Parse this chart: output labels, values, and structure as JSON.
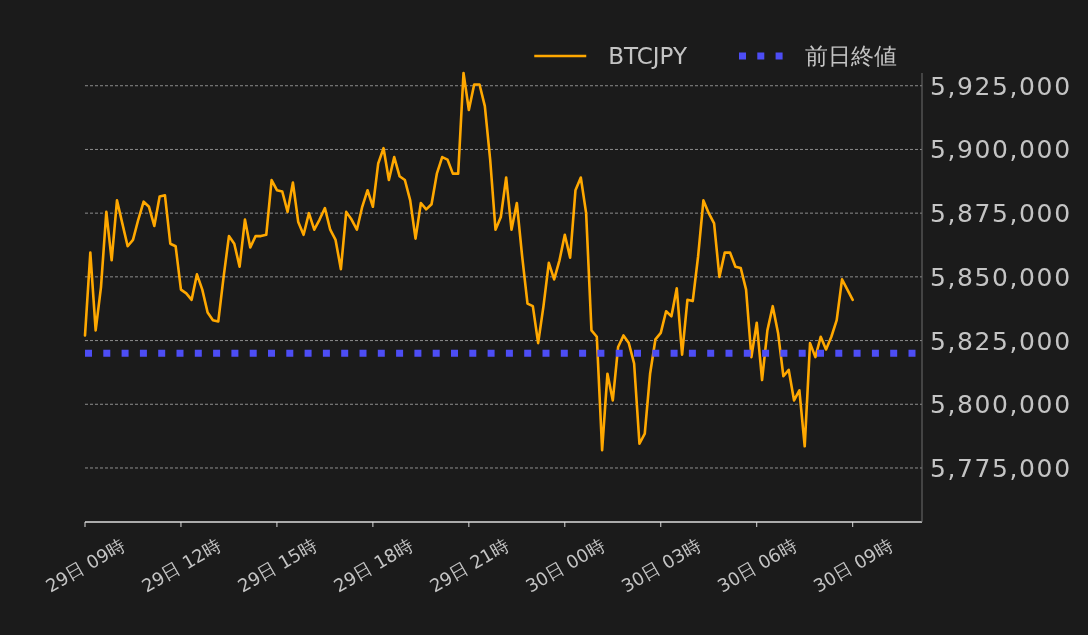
{
  "chart_data": {
    "type": "line",
    "categories": [
      "29日 09時",
      null,
      null,
      null,
      null,
      null,
      null,
      null,
      null,
      null,
      null,
      null,
      null,
      null,
      null,
      null,
      null,
      null,
      "29日 12時",
      null,
      null,
      null,
      null,
      null,
      null,
      null,
      null,
      null,
      null,
      null,
      null,
      null,
      null,
      null,
      null,
      null,
      "29日 15時",
      null,
      null,
      null,
      null,
      null,
      null,
      null,
      null,
      null,
      null,
      null,
      null,
      null,
      null,
      null,
      null,
      null,
      "29日 18時",
      null,
      null,
      null,
      null,
      null,
      null,
      null,
      null,
      null,
      null,
      null,
      null,
      null,
      null,
      null,
      null,
      null,
      "29日 21時",
      null,
      null,
      null,
      null,
      null,
      null,
      null,
      null,
      null,
      null,
      null,
      null,
      null,
      null,
      null,
      null,
      null,
      "30日 00時",
      null,
      null,
      null,
      null,
      null,
      null,
      null,
      null,
      null,
      null,
      null,
      null,
      null,
      null,
      null,
      null,
      null,
      "30日 03時",
      null,
      null,
      null,
      null,
      null,
      null,
      null,
      null,
      null,
      null,
      null,
      null,
      null,
      null,
      null,
      null,
      null,
      "30日 06時",
      null,
      null,
      null,
      null,
      null,
      null,
      null,
      null,
      null,
      null,
      null,
      null,
      null,
      null,
      null,
      null,
      null,
      "30日 09時",
      null,
      null,
      null,
      null,
      null,
      null,
      null,
      null,
      null,
      null,
      null,
      null,
      null
    ],
    "series": [
      {
        "name": "BTCJPY",
        "color": "#ffa800",
        "values": [
          5827000,
          5859500,
          5829000,
          5846000,
          5875500,
          5856500,
          5880000,
          5871000,
          5862000,
          5864500,
          5872500,
          5879500,
          5877500,
          5870000,
          5881500,
          5882000,
          5863000,
          5862000,
          5845000,
          5843500,
          5841000,
          5851000,
          5845000,
          5836000,
          5833000,
          5832500,
          5850000,
          5866000,
          5863000,
          5854000,
          5872500,
          5861500,
          5866000,
          5866000,
          5866500,
          5888000,
          5884000,
          5883500,
          5875500,
          5887000,
          5871500,
          5866500,
          5875000,
          5868500,
          5872500,
          5877000,
          5868500,
          5864500,
          5853000,
          5875500,
          5872500,
          5868500,
          5877500,
          5884000,
          5877500,
          5894500,
          5900500,
          5888000,
          5897000,
          5889500,
          5888000,
          5880000,
          5865000,
          5879000,
          5876500,
          5878500,
          5890500,
          5897000,
          5896000,
          5890500,
          5890500,
          5930000,
          5915500,
          5925500,
          5925500,
          5917000,
          5896000,
          5868500,
          5873500,
          5889000,
          5868500,
          5879000,
          5858000,
          5839500,
          5838500,
          5824000,
          5838500,
          5855500,
          5849000,
          5856500,
          5866500,
          5857500,
          5884000,
          5889000,
          5875000,
          5829000,
          5826500,
          5782000,
          5812000,
          5801500,
          5822500,
          5827000,
          5824000,
          5816000,
          5784500,
          5788500,
          5812000,
          5825500,
          5828000,
          5836500,
          5834500,
          5845500,
          5819500,
          5841000,
          5840500,
          5858000,
          5880000,
          5875000,
          5871000,
          5850000,
          5859500,
          5859500,
          5854000,
          5853500,
          5845000,
          5818500,
          5832000,
          5809500,
          5829000,
          5838500,
          5828000,
          5811000,
          5813500,
          5801500,
          5805500,
          5783500,
          5824000,
          5818500,
          5826500,
          5821500,
          5826500,
          5833000,
          5849000,
          5845000,
          5841000,
          null,
          null,
          null,
          null,
          null,
          null,
          null,
          null,
          null,
          null,
          null,
          null,
          null
        ]
      }
    ],
    "ylim": [
      5753800,
      5930000
    ],
    "yticks": [
      {
        "value": 5775000,
        "label": "5,775,000"
      },
      {
        "value": 5800000,
        "label": "5,800,000"
      },
      {
        "value": 5825000,
        "label": "5,825,000"
      },
      {
        "value": 5850000,
        "label": "5,850,000"
      },
      {
        "value": 5875000,
        "label": "5,875,000"
      },
      {
        "value": 5900000,
        "label": "5,900,000"
      },
      {
        "value": 5925000,
        "label": "5,925,000"
      }
    ],
    "ref_lines": [
      {
        "axis": "y",
        "value": 5820000,
        "label": "前日終値",
        "color": "#4d4df5",
        "line_style": "dotted"
      }
    ],
    "grid": "y",
    "legend": "top right"
  }
}
